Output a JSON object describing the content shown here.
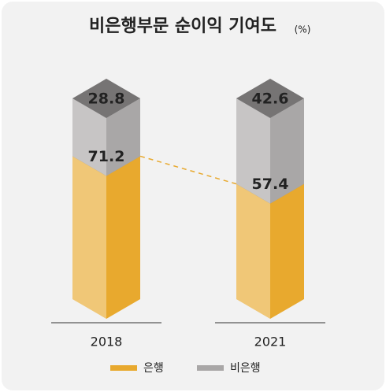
{
  "chart_data": {
    "type": "bar3d_stacked",
    "title": "비은행부문 순이익 기여도",
    "unit": "(%)",
    "categories": [
      "2018",
      "2021"
    ],
    "series": [
      {
        "name": "은행",
        "color": "#e8a92e",
        "values": [
          71.2,
          57.4
        ]
      },
      {
        "name": "비은행",
        "color": "#a9a7a7",
        "values": [
          28.8,
          42.6
        ]
      }
    ],
    "ylim": [
      0,
      100
    ]
  }
}
